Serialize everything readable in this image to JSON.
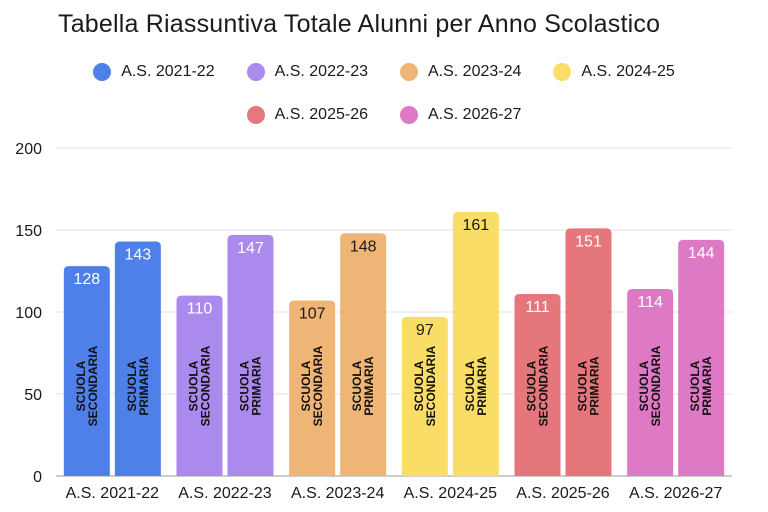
{
  "chart_data": {
    "type": "bar",
    "title": "Tabella Riassuntiva Totale Alunni per Anno Scolastico",
    "categories": [
      "A.S. 2021-22",
      "A.S. 2022-23",
      "A.S. 2023-24",
      "A.S. 2024-25",
      "A.S. 2025-26",
      "A.S. 2026-27"
    ],
    "bar_labels": [
      "SCUOLA SECONDARIA",
      "SCUOLA PRIMARIA"
    ],
    "series": [
      {
        "name": "SCUOLA SECONDARIA",
        "values": [
          128,
          110,
          107,
          97,
          111,
          114
        ]
      },
      {
        "name": "SCUOLA PRIMARIA",
        "values": [
          143,
          147,
          148,
          161,
          151,
          144
        ]
      }
    ],
    "legend": [
      "A.S. 2021-22",
      "A.S. 2022-23",
      "A.S. 2023-24",
      "A.S. 2024-25",
      "A.S. 2025-26",
      "A.S. 2026-27"
    ],
    "legend_position": "top",
    "colors": [
      "#4f7fe8",
      "#ab8aed",
      "#efb576",
      "#f9dd66",
      "#e5767b",
      "#de79c5"
    ],
    "value_label_colors": [
      "#ffffff",
      "#ffffff",
      "#1a1a1a",
      "#1a1a1a",
      "#ffffff",
      "#ffffff"
    ],
    "ylim": [
      0,
      200
    ],
    "yticks": [
      0,
      50,
      100,
      150,
      200
    ],
    "grid": true,
    "xlabel": "",
    "ylabel": ""
  }
}
